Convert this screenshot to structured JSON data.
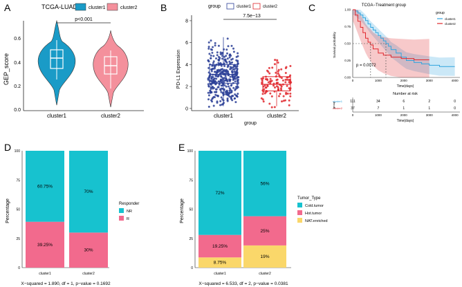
{
  "panels": {
    "A": {
      "letter": "A",
      "legend_title": "TCGA-LUAD",
      "legend_items": [
        {
          "label": "cluster1",
          "color": "#1a9bc7"
        },
        {
          "label": "cluster2",
          "color": "#f4909c"
        }
      ],
      "ylabel": "GEP_score",
      "yticks": [
        "0.6",
        "0.4",
        "0.2",
        "0.0"
      ],
      "xticks": [
        "cluster1",
        "cluster2"
      ],
      "pvalue": "p<0.001"
    },
    "B": {
      "letter": "B",
      "legend_title": "group",
      "legend_items": [
        {
          "label": "cluster1",
          "color": "#2b3f97"
        },
        {
          "label": "cluster2",
          "color": "#e0262c"
        }
      ],
      "ylabel": "PD-L1 Expression",
      "yticks": [
        "8",
        "6",
        "4",
        "2",
        "0"
      ],
      "xticks": [
        "cluster1",
        "cluster2"
      ],
      "xlabel": "group",
      "pvalue": "7.5e−13"
    },
    "C": {
      "letter": "C",
      "title": "TCGA−Treatment group",
      "legend_title": "group",
      "legend_items": [
        {
          "label": "cluster1",
          "color": "#2ea3de"
        },
        {
          "label": "cluster2",
          "color": "#e0262c"
        }
      ],
      "ylabel": "Survival probability",
      "yticks": [
        "1.00",
        "0.75",
        "0.50",
        "0.25",
        "0.00"
      ],
      "xticks": [
        "0",
        "1000",
        "2000",
        "3000",
        "4000"
      ],
      "xlabel": "Time(days)",
      "pvalue": "p = 0.0072",
      "risk_title": "Number at risk",
      "risk_rows": [
        {
          "name": "cluster1",
          "values": [
            "111",
            "34",
            "6",
            "2",
            "0"
          ]
        },
        {
          "name": "cluster2",
          "values": [
            "37",
            "7",
            "1",
            "1",
            "0"
          ]
        }
      ],
      "risk_ylabel": "group"
    },
    "D": {
      "letter": "D",
      "ylabel": "Percentage",
      "yticks": [
        "100",
        "75",
        "50",
        "25",
        "0"
      ],
      "legend_title": "Responder",
      "legend_items": [
        {
          "label": "NR",
          "color": "#17c2cf"
        },
        {
          "label": "R",
          "color": "#f26a8d"
        }
      ],
      "caption": "X−squared = 1.890, df = 1, p−value = 0.1692"
    },
    "E": {
      "letter": "E",
      "ylabel": "Percentage",
      "yticks": [
        "100",
        "75",
        "50",
        "25",
        "0"
      ],
      "legend_title": "Tumor_Type",
      "legend_items": [
        {
          "label": "Cold.tumor",
          "color": "#17c2cf"
        },
        {
          "label": "Hot.tumor",
          "color": "#f26a8d"
        },
        {
          "label": "NAT.enriched",
          "color": "#fad76a"
        }
      ],
      "caption": "X−squared = 6.533, df = 2, p−value = 0.0381"
    }
  },
  "chart_data": [
    {
      "type": "violin",
      "panel": "A",
      "ylabel": "GEP_score",
      "categories": [
        "cluster1",
        "cluster2"
      ],
      "ylim": [
        -0.05,
        0.75
      ],
      "box": [
        {
          "q1": 0.44,
          "median": 0.54,
          "q3": 0.62,
          "min": 0.25,
          "max": 0.7
        },
        {
          "q1": 0.36,
          "median": 0.45,
          "q3": 0.52,
          "min": 0.15,
          "max": 0.63
        }
      ],
      "annotation": "p<0.001"
    },
    {
      "type": "scatter",
      "panel": "B",
      "xlabel": "group",
      "ylabel": "PD-L1 Expression",
      "categories": [
        "cluster1",
        "cluster2"
      ],
      "ylim": [
        -0.2,
        8.5
      ],
      "box": [
        {
          "q1": 2.3,
          "median": 3.1,
          "q3": 4.0,
          "min": 0.2,
          "max": 6.5
        },
        {
          "q1": 1.6,
          "median": 2.2,
          "q3": 2.9,
          "min": 0.2,
          "max": 4.5
        }
      ],
      "annotation": "7.5e−13"
    },
    {
      "type": "line",
      "panel": "C",
      "title": "TCGA−Treatment group",
      "xlabel": "Time(days)",
      "ylabel": "Survival probability",
      "xlim": [
        0,
        4200
      ],
      "ylim": [
        0,
        1
      ],
      "median_line": 0.5,
      "series": [
        {
          "name": "cluster1",
          "x": [
            0,
            100,
            200,
            300,
            400,
            500,
            600,
            700,
            800,
            900,
            1000,
            1100,
            1200,
            1300,
            1400,
            1500,
            1700,
            1900,
            2100,
            2400,
            2700,
            3000,
            3400,
            4000
          ],
          "y": [
            1.0,
            0.98,
            0.95,
            0.92,
            0.88,
            0.84,
            0.79,
            0.74,
            0.7,
            0.66,
            0.62,
            0.58,
            0.54,
            0.5,
            0.46,
            0.41,
            0.36,
            0.3,
            0.25,
            0.22,
            0.2,
            0.18,
            0.16,
            0.16
          ]
        },
        {
          "name": "cluster2",
          "x": [
            0,
            100,
            200,
            300,
            400,
            500,
            600,
            700,
            800,
            1000,
            1200,
            1500,
            1900,
            2400,
            3000
          ],
          "y": [
            1.0,
            0.92,
            0.83,
            0.74,
            0.66,
            0.58,
            0.52,
            0.48,
            0.42,
            0.36,
            0.33,
            0.3,
            0.28,
            0.26,
            0.26
          ]
        }
      ],
      "annotation": "p = 0.0072"
    },
    {
      "type": "bar",
      "panel": "D",
      "stacked": true,
      "categories": [
        "cluster1",
        "cluster2"
      ],
      "ylabel": "Percentage",
      "ylim": [
        0,
        100
      ],
      "series": [
        {
          "name": "R",
          "values": [
            39.25,
            30
          ],
          "labels": [
            "39.25%",
            "30%"
          ]
        },
        {
          "name": "NR",
          "values": [
            60.75,
            70
          ],
          "labels": [
            "60.75%",
            "70%"
          ]
        }
      ]
    },
    {
      "type": "bar",
      "panel": "E",
      "stacked": true,
      "categories": [
        "cluster1",
        "cluster2"
      ],
      "ylabel": "Percentage",
      "ylim": [
        0,
        100
      ],
      "series": [
        {
          "name": "NAT.enriched",
          "values": [
            8.75,
            19
          ],
          "labels": [
            "8.75%",
            "19%"
          ]
        },
        {
          "name": "Hot.tumor",
          "values": [
            19.25,
            25
          ],
          "labels": [
            "19.25%",
            "25%"
          ]
        },
        {
          "name": "Cold.tumor",
          "values": [
            72,
            56
          ],
          "labels": [
            "72%",
            "56%"
          ]
        }
      ]
    }
  ]
}
